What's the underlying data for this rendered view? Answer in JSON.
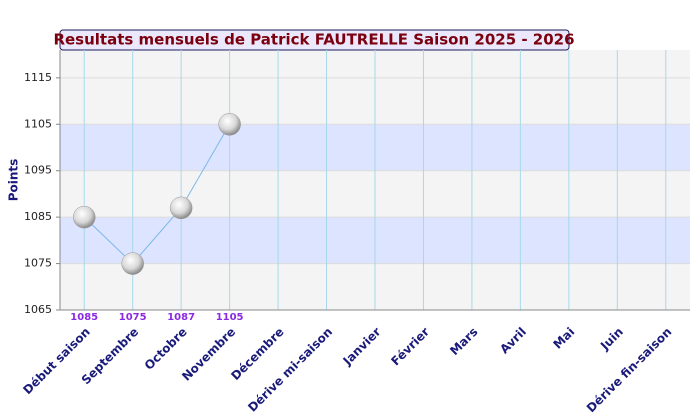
{
  "chart_data": {
    "type": "line",
    "title": "Resultats mensuels de Patrick FAUTRELLE Saison 2025 - 2026",
    "y_label": "Points",
    "categories": [
      "Début saison",
      "Septembre",
      "Octobre",
      "Novembre",
      "Décembre",
      "Dérive mi-saison",
      "Janvier",
      "Février",
      "Mars",
      "Avril",
      "Mai",
      "Juin",
      "Dérive fin-saison"
    ],
    "values": [
      1085,
      1075,
      1087,
      1105,
      null,
      null,
      null,
      null,
      null,
      null,
      null,
      null,
      null
    ],
    "color": "#7ab8e8",
    "ylim": [
      1065,
      1121
    ],
    "yticks": [
      1065,
      1075,
      1085,
      1095,
      1105,
      1115
    ],
    "grid": true
  }
}
